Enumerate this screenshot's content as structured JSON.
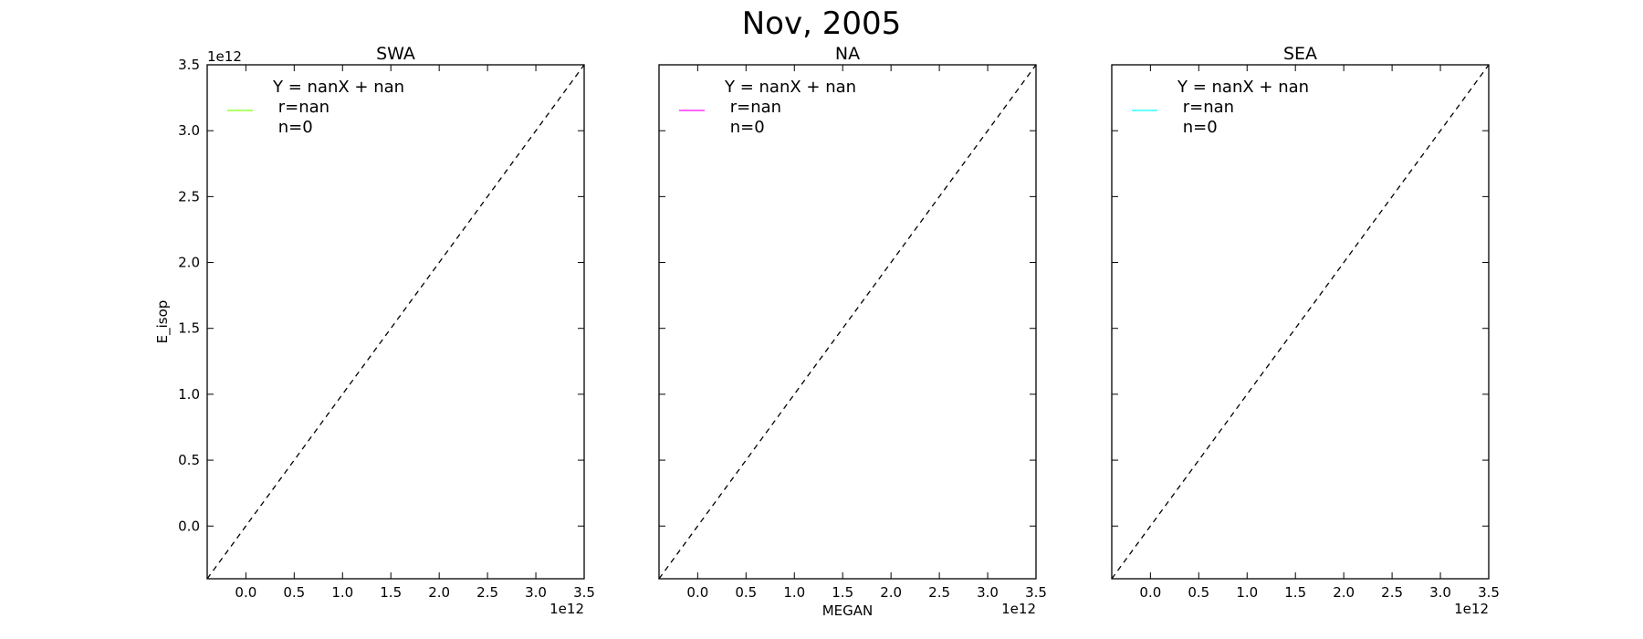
{
  "figure": {
    "suptitle": "Nov, 2005"
  },
  "chart_data": [
    {
      "type": "scatter",
      "title": "SWA",
      "xlabel": "",
      "ylabel": "E_isop",
      "xlim": [
        -0.4,
        3.5
      ],
      "ylim": [
        -0.4,
        3.5
      ],
      "x_ticks": [
        "0.0",
        "0.5",
        "1.0",
        "1.5",
        "2.0",
        "2.5",
        "3.0",
        "3.5"
      ],
      "y_ticks": [
        "0.0",
        "0.5",
        "1.0",
        "1.5",
        "2.0",
        "2.5",
        "3.0",
        "3.5"
      ],
      "x_offset_label": "1e12",
      "y_offset_label": "1e12",
      "show_y_tick_labels": true,
      "reference_line": {
        "x": [
          -0.4,
          3.5
        ],
        "y": [
          -0.4,
          3.5
        ],
        "style": "dashed",
        "color": "#000000"
      },
      "series": [
        {
          "x": [],
          "y": []
        }
      ],
      "legend": {
        "placement": "upper-left",
        "color": "#99ff33",
        "lines": [
          "Y = nanX + nan",
          " r=nan",
          " n=0"
        ]
      }
    },
    {
      "type": "scatter",
      "title": "NA",
      "xlabel": "MEGAN",
      "ylabel": "",
      "xlim": [
        -0.4,
        3.5
      ],
      "ylim": [
        -0.4,
        3.5
      ],
      "x_ticks": [
        "0.0",
        "0.5",
        "1.0",
        "1.5",
        "2.0",
        "2.5",
        "3.0",
        "3.5"
      ],
      "y_ticks": [],
      "x_offset_label": "1e12",
      "y_offset_label": "",
      "show_y_tick_labels": false,
      "reference_line": {
        "x": [
          -0.4,
          3.5
        ],
        "y": [
          -0.4,
          3.5
        ],
        "style": "dashed",
        "color": "#000000"
      },
      "series": [
        {
          "x": [],
          "y": []
        }
      ],
      "legend": {
        "placement": "upper-left",
        "color": "#ff33ff",
        "lines": [
          "Y = nanX + nan",
          " r=nan",
          " n=0"
        ]
      }
    },
    {
      "type": "scatter",
      "title": "SEA",
      "xlabel": "",
      "ylabel": "",
      "xlim": [
        -0.4,
        3.5
      ],
      "ylim": [
        -0.4,
        3.5
      ],
      "x_ticks": [
        "0.0",
        "0.5",
        "1.0",
        "1.5",
        "2.0",
        "2.5",
        "3.0",
        "3.5"
      ],
      "y_ticks": [],
      "x_offset_label": "1e12",
      "y_offset_label": "",
      "show_y_tick_labels": false,
      "reference_line": {
        "x": [
          -0.4,
          3.5
        ],
        "y": [
          -0.4,
          3.5
        ],
        "style": "dashed",
        "color": "#000000"
      },
      "series": [
        {
          "x": [],
          "y": []
        }
      ],
      "legend": {
        "placement": "upper-left",
        "color": "#33ffff",
        "lines": [
          "Y = nanX + nan",
          " r=nan",
          " n=0"
        ]
      }
    }
  ]
}
